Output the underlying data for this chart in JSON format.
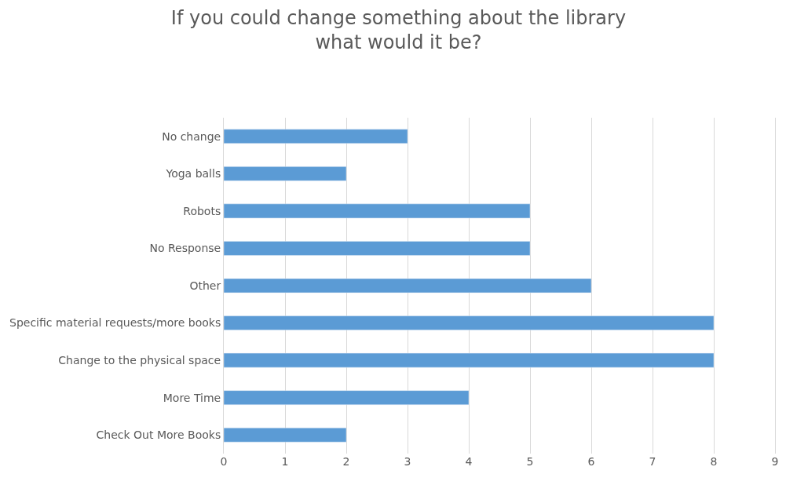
{
  "chart_data": {
    "type": "bar",
    "orientation": "horizontal",
    "title": "If you could change something about the library\nwhat would it be?",
    "categories": [
      "No change",
      "Yoga balls",
      "Robots",
      "No Response",
      "Other",
      "Specific material requests/more books",
      "Change to the physical space",
      "More Time",
      "Check Out More Books"
    ],
    "values": [
      3,
      2,
      5,
      5,
      6,
      8,
      8,
      4,
      2
    ],
    "color": "#5b9bd5",
    "xlim": [
      0,
      9
    ],
    "xticks": [
      0,
      1,
      2,
      3,
      4,
      5,
      6,
      7,
      8,
      9
    ],
    "grid": "x"
  }
}
